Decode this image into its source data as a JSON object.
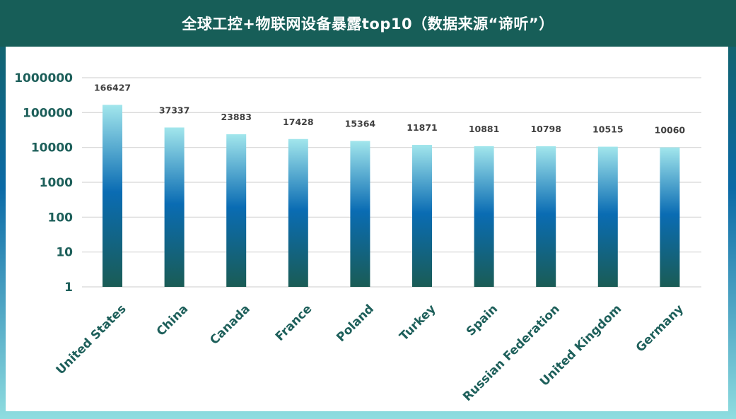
{
  "chart_data": {
    "type": "bar",
    "title": "全球工控+物联网设备暴露top10（数据来源“谛听”）",
    "scale": "log",
    "ylim": [
      1,
      1000000
    ],
    "y_ticks": [
      "1000000",
      "100000",
      "10000",
      "1000",
      "100",
      "10",
      "1"
    ],
    "categories": [
      "United States",
      "China",
      "Canada",
      "France",
      "Poland",
      "Turkey",
      "Spain",
      "Russian Federation",
      "United Kingdom",
      "Germany"
    ],
    "values": [
      166427,
      37337,
      23883,
      17428,
      15364,
      11871,
      10881,
      10798,
      10515,
      10060
    ],
    "data_labels": [
      "166427",
      "37337",
      "23883",
      "17428",
      "15364",
      "11871",
      "10881",
      "10798",
      "10515",
      "10060"
    ],
    "grid": true,
    "colors": {
      "header": "#175e58",
      "bar_top": "#9fe3ea",
      "bar_mid": "#0b6db4",
      "bar_bottom": "#1a5e56",
      "text": "#1d5f5a"
    }
  }
}
